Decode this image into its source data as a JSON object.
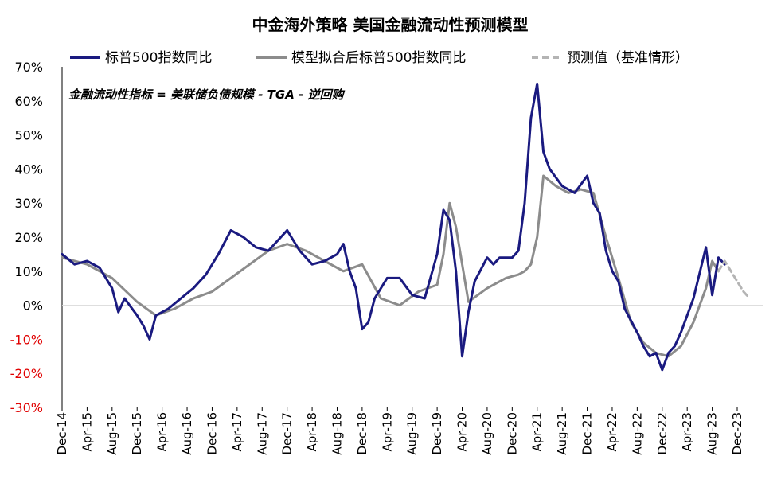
{
  "chart_data": {
    "type": "line",
    "title": "中金海外策略  美国金融流动性预测模型",
    "annotation": "金融流动性指标 = 美联储负债规模 - TGA - 逆回购",
    "legend_position": "top",
    "grid": false,
    "x_ticks": [
      "Dec-14",
      "Apr-15",
      "Aug-15",
      "Dec-15",
      "Apr-16",
      "Aug-16",
      "Dec-16",
      "Apr-17",
      "Aug-17",
      "Dec-17",
      "Apr-18",
      "Aug-18",
      "Dec-18",
      "Apr-19",
      "Aug-19",
      "Dec-19",
      "Apr-20",
      "Aug-20",
      "Dec-20",
      "Apr-21",
      "Aug-21",
      "Dec-21",
      "Apr-22",
      "Aug-22",
      "Dec-22",
      "Apr-23",
      "Aug-23",
      "Dec-23"
    ],
    "y_ticks": [
      "70%",
      "60%",
      "50%",
      "40%",
      "30%",
      "20%",
      "10%",
      "0%",
      "-10%",
      "-20%",
      "-30%"
    ],
    "ylim": [
      -30,
      70
    ],
    "y_unit": "%",
    "colors": {
      "actual": "#1a1a80",
      "fitted": "#8c8c8c",
      "forecast": "#b4b4b4",
      "negative_tick": "#e00000"
    },
    "series": [
      {
        "name": "标普500指数同比",
        "style": "solid",
        "x": [
          "2014-12",
          "2015-02",
          "2015-04",
          "2015-06",
          "2015-08",
          "2015-09",
          "2015-10",
          "2015-12",
          "2016-01",
          "2016-02",
          "2016-03",
          "2016-05",
          "2016-07",
          "2016-09",
          "2016-11",
          "2017-01",
          "2017-03",
          "2017-05",
          "2017-07",
          "2017-09",
          "2017-11",
          "2017-12",
          "2018-02",
          "2018-04",
          "2018-06",
          "2018-08",
          "2018-09",
          "2018-10",
          "2018-11",
          "2018-12",
          "2019-01",
          "2019-02",
          "2019-04",
          "2019-06",
          "2019-08",
          "2019-10",
          "2019-12",
          "2020-01",
          "2020-02",
          "2020-03",
          "2020-04",
          "2020-05",
          "2020-06",
          "2020-08",
          "2020-09",
          "2020-10",
          "2020-12",
          "2021-01",
          "2021-02",
          "2021-03",
          "2021-04",
          "2021-05",
          "2021-06",
          "2021-08",
          "2021-10",
          "2021-12",
          "2022-01",
          "2022-02",
          "2022-03",
          "2022-04",
          "2022-05",
          "2022-06",
          "2022-08",
          "2022-09",
          "2022-10",
          "2022-11",
          "2022-12",
          "2023-01",
          "2023-02",
          "2023-03",
          "2023-05",
          "2023-07",
          "2023-08",
          "2023-09",
          "2023-10"
        ],
        "y": [
          15,
          12,
          13,
          11,
          5,
          -2,
          2,
          -3,
          -6,
          -10,
          -3,
          -1,
          2,
          5,
          9,
          15,
          22,
          20,
          17,
          16,
          20,
          22,
          16,
          12,
          13,
          15,
          18,
          10,
          5,
          -7,
          -5,
          2,
          8,
          8,
          3,
          2,
          15,
          28,
          25,
          10,
          -15,
          -2,
          7,
          14,
          12,
          14,
          14,
          16,
          30,
          55,
          65,
          45,
          40,
          35,
          33,
          38,
          30,
          27,
          16,
          10,
          7,
          -1,
          -8,
          -12,
          -15,
          -14,
          -19,
          -14,
          -12,
          -8,
          2,
          17,
          3,
          14,
          12
        ]
      },
      {
        "name": "模型拟合后标普500指数同比",
        "style": "solid",
        "x": [
          "2014-12",
          "2015-04",
          "2015-08",
          "2015-12",
          "2016-03",
          "2016-06",
          "2016-09",
          "2016-12",
          "2017-03",
          "2017-06",
          "2017-09",
          "2017-12",
          "2018-03",
          "2018-06",
          "2018-09",
          "2018-12",
          "2019-03",
          "2019-06",
          "2019-09",
          "2019-12",
          "2020-01",
          "2020-02",
          "2020-03",
          "2020-05",
          "2020-08",
          "2020-11",
          "2021-01",
          "2021-02",
          "2021-03",
          "2021-04",
          "2021-05",
          "2021-07",
          "2021-09",
          "2021-11",
          "2022-01",
          "2022-03",
          "2022-05",
          "2022-07",
          "2022-09",
          "2022-11",
          "2023-01",
          "2023-03",
          "2023-05",
          "2023-07",
          "2023-08",
          "2023-09"
        ],
        "y": [
          14,
          12,
          8,
          1,
          -3,
          -1,
          2,
          4,
          8,
          12,
          16,
          18,
          16,
          13,
          10,
          12,
          2,
          0,
          4,
          6,
          15,
          30,
          23,
          1,
          5,
          8,
          9,
          10,
          12,
          20,
          38,
          35,
          33,
          34,
          33,
          20,
          8,
          -5,
          -11,
          -14,
          -15,
          -12,
          -5,
          5,
          13,
          10
        ]
      },
      {
        "name": "预测值（基准情形）",
        "style": "dashed",
        "x": [
          "2023-09",
          "2023-10",
          "2023-11",
          "2023-12",
          "2024-01",
          "2024-02"
        ],
        "y": [
          10,
          13,
          10,
          7,
          4,
          2
        ]
      }
    ]
  }
}
